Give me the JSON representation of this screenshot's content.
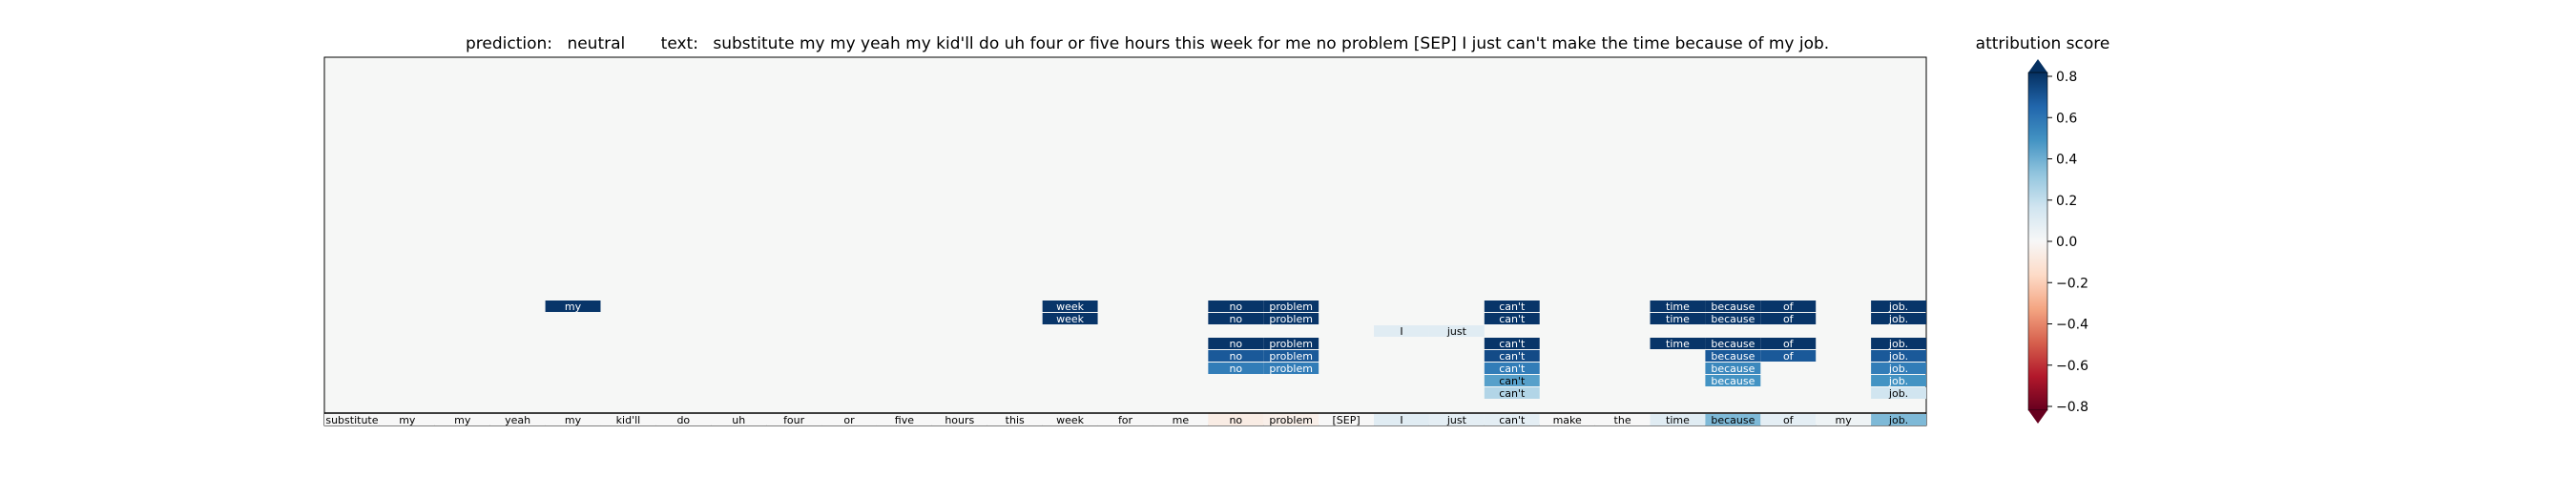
{
  "header": {
    "prediction_label": "prediction:",
    "prediction_value": "neutral",
    "text_label": "text:",
    "text_value": "substitute my my yeah my kid'll do uh four or five hours this week for me no problem [SEP] I just can't make the time because of my job."
  },
  "colorbar": {
    "title": "attribution score",
    "ticks": [
      "0.8",
      "0.6",
      "0.4",
      "0.2",
      "0.0",
      "−0.2",
      "−0.4",
      "−0.6",
      "−0.8"
    ],
    "range": [
      -0.8,
      0.8
    ],
    "colormap": "RdBu",
    "extend": "both"
  },
  "chart_data": {
    "type": "heatmap",
    "tokens": [
      "substitute",
      "my",
      "my",
      "yeah",
      "my",
      "kid'll",
      "do",
      "uh",
      "four",
      "or",
      "five",
      "hours",
      "this",
      "week",
      "for",
      "me",
      "no",
      "problem",
      "[SEP]",
      "I",
      "just",
      "can't",
      "make",
      "the",
      "time",
      "because",
      "of",
      "my",
      "job."
    ],
    "token_scores": [
      0.0,
      0.0,
      0.0,
      0.0,
      0.0,
      0.0,
      0.0,
      0.0,
      0.0,
      0.0,
      0.0,
      0.0,
      0.0,
      0.0,
      0.0,
      0.0,
      -0.08,
      -0.06,
      0.0,
      0.12,
      0.1,
      0.1,
      0.0,
      0.0,
      0.12,
      0.45,
      0.1,
      0.05,
      0.45
    ],
    "heads": [
      {
        "layer": 1,
        "cells": [
          [
            4,
            0.98
          ],
          [
            13,
            0.98
          ],
          [
            16,
            0.98
          ],
          [
            17,
            0.98
          ],
          [
            21,
            0.98
          ],
          [
            24,
            0.98
          ],
          [
            25,
            0.98
          ],
          [
            26,
            0.98
          ],
          [
            28,
            0.98
          ]
        ]
      },
      {
        "layer": 2,
        "cells": [
          [
            13,
            0.98
          ],
          [
            16,
            0.98
          ],
          [
            17,
            0.98
          ],
          [
            21,
            0.98
          ],
          [
            24,
            0.98
          ],
          [
            25,
            0.98
          ],
          [
            26,
            0.98
          ],
          [
            28,
            0.98
          ]
        ]
      },
      {
        "layer": 3,
        "cells": [
          [
            19,
            0.12
          ],
          [
            20,
            0.12
          ]
        ]
      },
      {
        "layer": 4,
        "cells": [
          [
            16,
            0.98
          ],
          [
            17,
            0.98
          ],
          [
            21,
            0.98
          ],
          [
            24,
            0.98
          ],
          [
            25,
            0.98
          ],
          [
            26,
            0.98
          ],
          [
            28,
            0.98
          ]
        ]
      },
      {
        "layer": 5,
        "cells": [
          [
            16,
            0.85
          ],
          [
            17,
            0.85
          ],
          [
            21,
            0.9
          ],
          [
            25,
            0.85
          ],
          [
            26,
            0.85
          ],
          [
            28,
            0.85
          ]
        ]
      },
      {
        "layer": 6,
        "cells": [
          [
            16,
            0.7
          ],
          [
            17,
            0.7
          ],
          [
            21,
            0.7
          ],
          [
            25,
            0.65
          ],
          [
            28,
            0.7
          ]
        ]
      },
      {
        "layer": 7,
        "cells": [
          [
            21,
            0.55
          ],
          [
            25,
            0.6
          ],
          [
            28,
            0.6
          ]
        ]
      },
      {
        "layer": 8,
        "cells": [
          [
            21,
            0.3
          ],
          [
            28,
            0.2
          ]
        ]
      },
      {
        "layer": 9,
        "cells": []
      },
      {
        "layer": 10,
        "cells": [
          [
            16,
            -0.08
          ],
          [
            17,
            -0.06
          ]
        ]
      }
    ]
  }
}
